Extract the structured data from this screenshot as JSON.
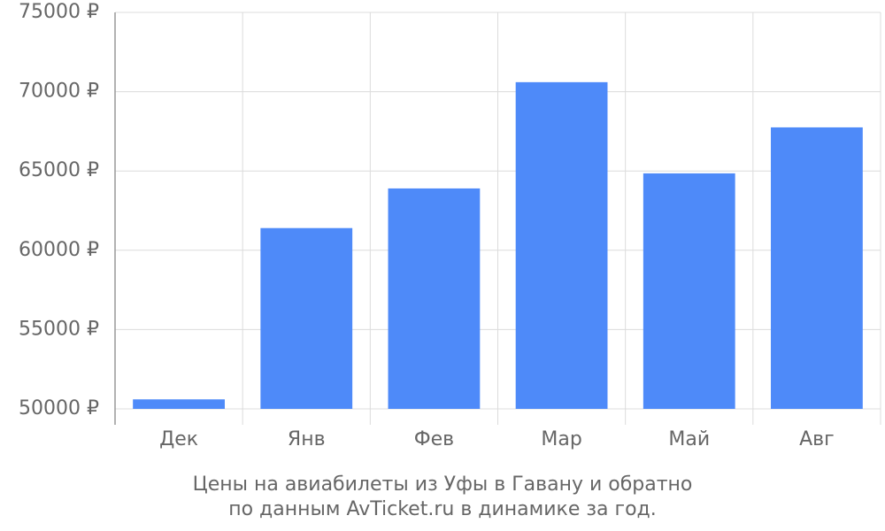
{
  "chart_data": {
    "type": "bar",
    "title": [
      "Цены на авиабилеты из Уфы в Гавану и обратно",
      "по данным AvTicket.ru в динамике за год."
    ],
    "categories": [
      "Дек",
      "Янв",
      "Фев",
      "Мар",
      "Май",
      "Авг"
    ],
    "values": [
      50600,
      61400,
      63900,
      70600,
      64850,
      67750
    ],
    "color": "#4e8af9",
    "ylim": [
      50000,
      75000
    ],
    "yticks": [
      {
        "value": 50000,
        "label": "50000 ₽"
      },
      {
        "value": 55000,
        "label": "55000 ₽"
      },
      {
        "value": 60000,
        "label": "60000 ₽"
      },
      {
        "value": 65000,
        "label": "65000 ₽"
      },
      {
        "value": 70000,
        "label": "70000 ₽"
      },
      {
        "value": 75000,
        "label": "75000 ₽"
      }
    ],
    "grid": true
  }
}
